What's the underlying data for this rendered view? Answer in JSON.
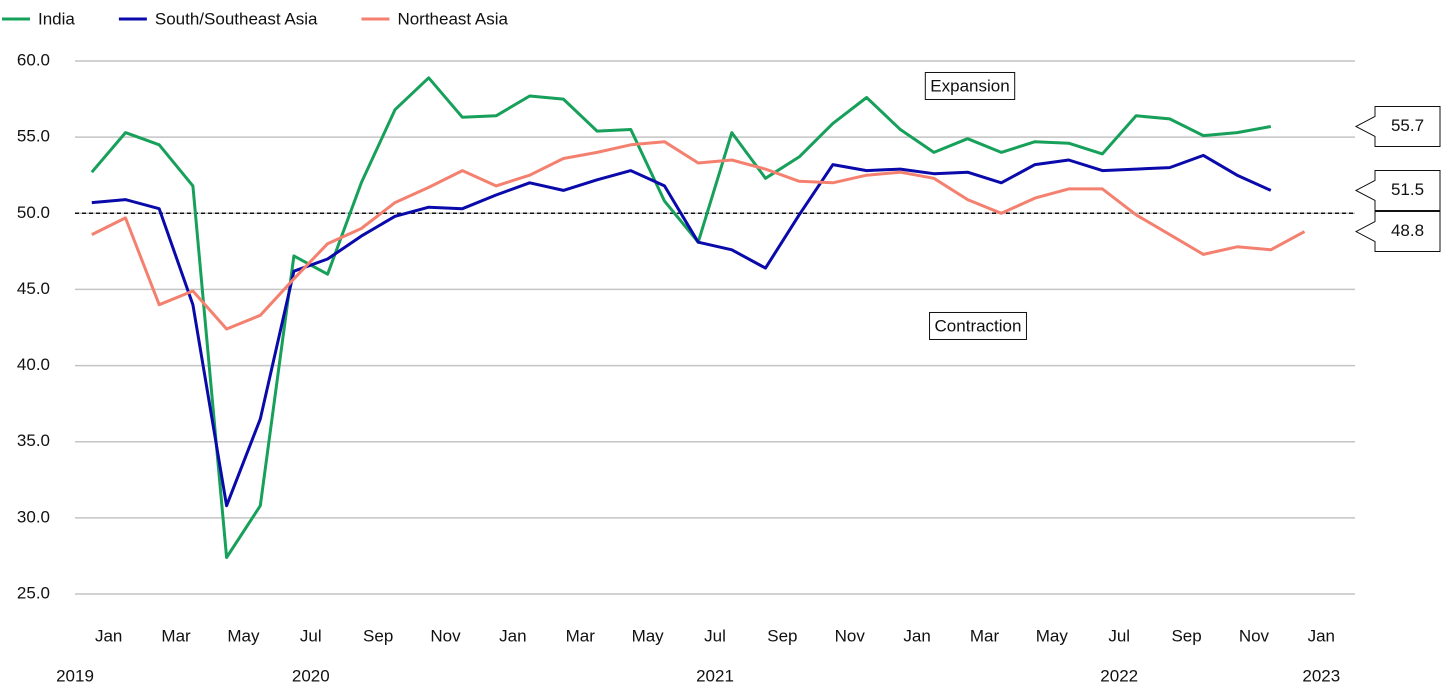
{
  "chart_data": {
    "type": "line",
    "x": [
      "2019-12",
      "2020-01",
      "2020-02",
      "2020-03",
      "2020-04",
      "2020-05",
      "2020-06",
      "2020-07",
      "2020-08",
      "2020-09",
      "2020-10",
      "2020-11",
      "2020-12",
      "2021-01",
      "2021-02",
      "2021-03",
      "2021-04",
      "2021-05",
      "2021-06",
      "2021-07",
      "2021-08",
      "2021-09",
      "2021-10",
      "2021-11",
      "2021-12",
      "2022-01",
      "2022-02",
      "2022-03",
      "2022-04",
      "2022-05",
      "2022-06",
      "2022-07",
      "2022-08",
      "2022-09",
      "2022-10",
      "2022-11",
      "2022-12"
    ],
    "series": [
      {
        "name": "India",
        "color": "#17a05a",
        "values": [
          52.7,
          55.3,
          54.5,
          51.8,
          27.4,
          30.8,
          47.2,
          46.0,
          52.0,
          56.8,
          58.9,
          56.3,
          56.4,
          57.7,
          57.5,
          55.4,
          55.5,
          50.8,
          48.1,
          55.3,
          52.3,
          53.7,
          55.9,
          57.6,
          55.5,
          54.0,
          54.9,
          54.0,
          54.7,
          54.6,
          53.9,
          56.4,
          56.2,
          55.1,
          55.3,
          55.7,
          null
        ]
      },
      {
        "name": "South/Southeast Asia",
        "color": "#0a0aab",
        "values": [
          50.7,
          50.9,
          50.3,
          44.0,
          30.8,
          36.5,
          46.2,
          47.0,
          48.5,
          49.8,
          50.4,
          50.3,
          51.2,
          52.0,
          51.5,
          52.2,
          52.8,
          51.8,
          48.1,
          47.6,
          46.4,
          49.9,
          53.2,
          52.8,
          52.9,
          52.6,
          52.7,
          52.0,
          53.2,
          53.5,
          52.8,
          52.9,
          53.0,
          53.8,
          52.5,
          51.5,
          null
        ]
      },
      {
        "name": "Northeast Asia",
        "color": "#f4806f",
        "values": [
          48.6,
          49.7,
          44.0,
          44.9,
          42.4,
          43.3,
          45.7,
          48.0,
          49.0,
          50.7,
          51.7,
          52.8,
          51.8,
          52.5,
          53.6,
          54.0,
          54.5,
          54.7,
          53.3,
          53.5,
          52.9,
          52.1,
          52.0,
          52.5,
          52.7,
          52.3,
          50.9,
          50.0,
          51.0,
          51.6,
          51.6,
          49.9,
          48.6,
          47.3,
          47.8,
          47.6,
          48.8
        ]
      }
    ],
    "xlim": [
      "2019-12",
      "2022-12"
    ],
    "xticks": [
      {
        "value": "2020-01",
        "label": "Jan"
      },
      {
        "value": "2020-03",
        "label": "Mar"
      },
      {
        "value": "2020-05",
        "label": "May"
      },
      {
        "value": "2020-07",
        "label": "Jul"
      },
      {
        "value": "2020-09",
        "label": "Sep"
      },
      {
        "value": "2020-11",
        "label": "Nov"
      },
      {
        "value": "2021-01",
        "label": "Jan"
      },
      {
        "value": "2021-03",
        "label": "Mar"
      },
      {
        "value": "2021-05",
        "label": "May"
      },
      {
        "value": "2021-07",
        "label": "Jul"
      },
      {
        "value": "2021-09",
        "label": "Sep"
      },
      {
        "value": "2021-11",
        "label": "Nov"
      },
      {
        "value": "2022-01",
        "label": "Jan"
      },
      {
        "value": "2022-03",
        "label": "Mar"
      },
      {
        "value": "2022-05",
        "label": "May"
      },
      {
        "value": "2022-07",
        "label": "Jul"
      },
      {
        "value": "2022-09",
        "label": "Sep"
      },
      {
        "value": "2022-11",
        "label": "Nov"
      },
      {
        "value": "2023-01",
        "label": "Jan"
      }
    ],
    "year_ticks": [
      {
        "value": "2019-12",
        "label": "2019"
      },
      {
        "value": "2020-07",
        "label": "2020"
      },
      {
        "value": "2021-07",
        "label": "2021"
      },
      {
        "value": "2022-07",
        "label": "2022"
      },
      {
        "value": "2023-01",
        "label": "2023"
      }
    ],
    "ylim": [
      25,
      60
    ],
    "yticks": [
      {
        "value": 25,
        "label": "25.0"
      },
      {
        "value": 30,
        "label": "30.0"
      },
      {
        "value": 35,
        "label": "35.0"
      },
      {
        "value": 40,
        "label": "40.0"
      },
      {
        "value": 45,
        "label": "45.0"
      },
      {
        "value": 50,
        "label": "50.0"
      },
      {
        "value": 55,
        "label": "55.0"
      },
      {
        "value": 60,
        "label": "60.0"
      }
    ],
    "grid": true,
    "threshold": 50,
    "annotations": [
      "Expansion",
      "Contraction"
    ],
    "end_labels": [
      "55.7",
      "51.5",
      "48.8"
    ],
    "legend": "top-left"
  }
}
